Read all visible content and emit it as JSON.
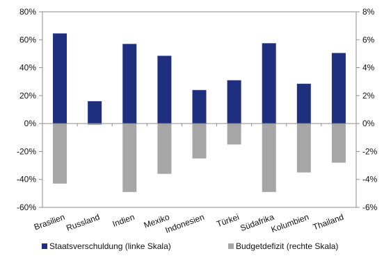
{
  "chart_data": {
    "type": "bar",
    "categories": [
      "Brasilien",
      "Russland",
      "Indien",
      "Mexiko",
      "Indonesien",
      "Türkei",
      "Südafrika",
      "Kolumbien",
      "Thailand"
    ],
    "series": [
      {
        "name": "Staatsverschuldung (linke Skala)",
        "axis": "left",
        "color": "#1f2f7f",
        "values": [
          64.5,
          16,
          57,
          48.5,
          24,
          31,
          57.5,
          28.5,
          50.5
        ]
      },
      {
        "name": "Budgetdefizit (rechte Skala)",
        "axis": "right",
        "color": "#a6a6a6",
        "values": [
          -4.3,
          -0.1,
          -4.9,
          -3.6,
          -2.5,
          -1.5,
          -4.9,
          -3.5,
          -2.8
        ]
      }
    ],
    "left_axis": {
      "ylim": [
        -60,
        80
      ],
      "ticks": [
        80,
        60,
        40,
        20,
        0,
        -20,
        -40,
        -60
      ],
      "tick_labels": [
        "80%",
        "60%",
        "40%",
        "20%",
        "0%",
        "-20%",
        "-40%",
        "-60%"
      ]
    },
    "right_axis": {
      "ylim": [
        -6,
        8
      ],
      "ticks": [
        8,
        6,
        4,
        2,
        0,
        -2,
        -4,
        -6
      ],
      "tick_labels": [
        "8%",
        "6%",
        "4%",
        "2%",
        "0%",
        "-2%",
        "-4%",
        "-6%"
      ]
    },
    "grid": false,
    "legend": {
      "placement": "bottom",
      "entries": [
        "Staatsverschuldung (linke Skala)",
        "Budgetdefizit (rechte Skala)"
      ]
    },
    "title": "",
    "xlabel": "",
    "ylabel": ""
  }
}
